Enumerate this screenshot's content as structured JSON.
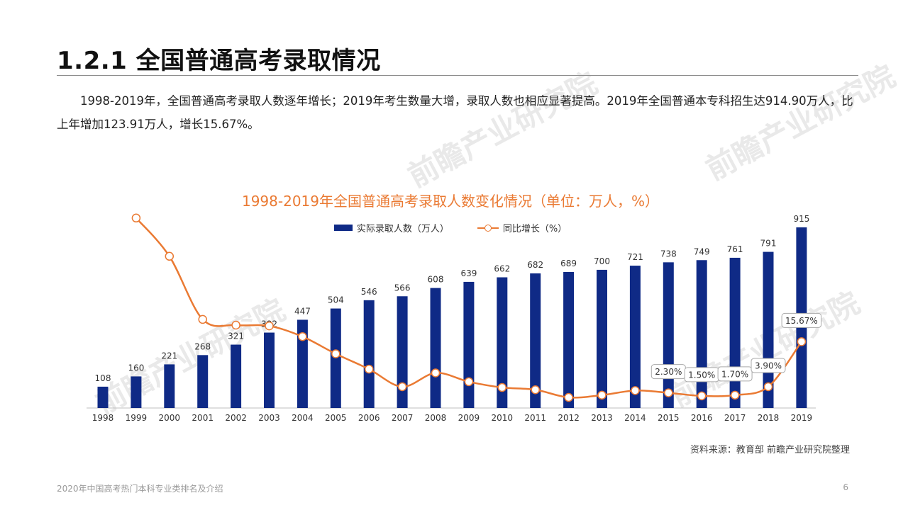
{
  "page": {
    "title": "1.2.1 全国普通高考录取情况",
    "summary": "1998-2019年，全国普通高考录取人数逐年增长；2019年考生数量大增，录取人数也相应显著提高。2019年全国普通本专科招生达914.90万人，比上年增加123.91万人，增长15.67%。",
    "source": "资料来源：教育部 前瞻产业研究院整理",
    "footer_left": "2020年中国高考热门本科专业类排名及介绍",
    "footer_right": "6",
    "watermark": "前瞻产业研究院"
  },
  "chart_data": {
    "type": "bar",
    "title": "1998-2019年全国普通高考录取人数变化情况（单位：万人，%）",
    "categories": [
      "1998",
      "1999",
      "2000",
      "2001",
      "2002",
      "2003",
      "2004",
      "2005",
      "2006",
      "2007",
      "2008",
      "2009",
      "2010",
      "2011",
      "2012",
      "2013",
      "2014",
      "2015",
      "2016",
      "2017",
      "2018",
      "2019"
    ],
    "series": [
      {
        "name": "实际录取人数（万人）",
        "type": "bar",
        "color": "#0f2a86",
        "values": [
          108,
          160,
          221,
          268,
          321,
          382,
          447,
          504,
          546,
          566,
          608,
          639,
          662,
          682,
          689,
          700,
          721,
          738,
          749,
          761,
          791,
          915
        ]
      },
      {
        "name": "同比增长（%）",
        "type": "line",
        "color": "#ea7a33",
        "values": [
          null,
          48.0,
          38.0,
          21.5,
          20.0,
          19.8,
          17.0,
          12.5,
          8.5,
          3.9,
          7.5,
          5.2,
          3.7,
          3.1,
          1.1,
          1.7,
          2.9,
          2.3,
          1.5,
          1.7,
          3.9,
          15.67
        ],
        "labeled_points": {
          "2015": "2.30%",
          "2016": "1.50%",
          "2017": "1.70%",
          "2018": "3.90%",
          "2019": "15.67%"
        }
      }
    ],
    "legend_position": "top-center"
  }
}
